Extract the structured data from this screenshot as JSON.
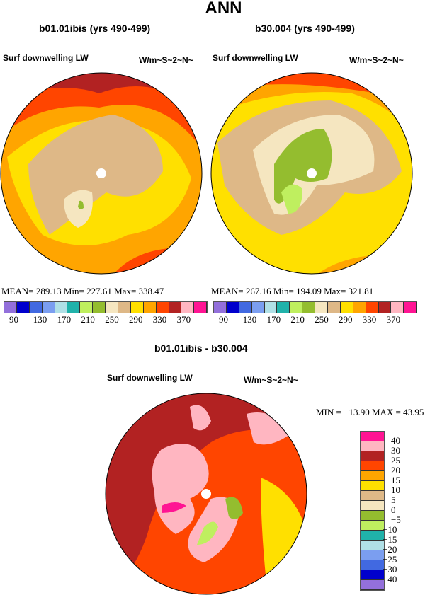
{
  "title": "ANN",
  "panels": [
    {
      "case": "b01.01ibis (yrs 490-499)",
      "variable": "Surf downwelling LW",
      "units": "W/m~S~2~N~",
      "stats": "MEAN= 289.13   Min= 227.61   Max= 338.47"
    },
    {
      "case": "b30.004 (yrs 490-499)",
      "variable": "Surf downwelling LW",
      "units": "W/m~S~2~N~",
      "stats": "MEAN= 267.16   Min= 194.09   Max= 321.81"
    }
  ],
  "colorbar": {
    "colors": [
      "#9370db",
      "#0000cd",
      "#4169e1",
      "#7b9ef0",
      "#b0e0e6",
      "#20b2aa",
      "#bfef5f",
      "#94bd2f",
      "#f5e6c0",
      "#deb887",
      "#ffe000",
      "#ffa500",
      "#ff4500",
      "#b22222",
      "#ffb6c1",
      "#ff1493"
    ],
    "labels": [
      "90",
      "130",
      "170",
      "210",
      "250",
      "290",
      "330",
      "370"
    ]
  },
  "diff": {
    "title": "b01.01ibis - b30.004",
    "variable": "Surf downwelling LW",
    "units": "W/m~S~2~N~",
    "stats": "MIN = −13.90  MAX =   43.95",
    "colors": [
      "#ff1493",
      "#ffb6c1",
      "#b22222",
      "#ff4500",
      "#ffa500",
      "#ffe000",
      "#deb887",
      "#f5e6c0",
      "#94bd2f",
      "#bfef5f",
      "#20b2aa",
      "#b0e0e6",
      "#7b9ef0",
      "#4169e1",
      "#0000cd",
      "#9370db"
    ],
    "labels": [
      "40",
      "30",
      "25",
      "20",
      "15",
      "10",
      "5",
      "0",
      "−5",
      "−10",
      "−15",
      "−20",
      "−25",
      "−30",
      "−40"
    ]
  }
}
